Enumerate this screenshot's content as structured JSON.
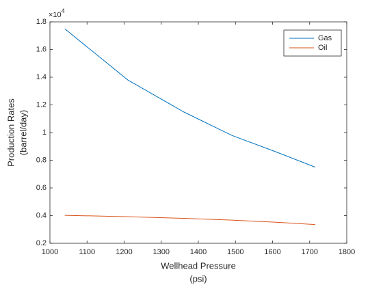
{
  "chart_data": {
    "type": "line",
    "x_label": [
      "Wellhead Pressure",
      "(psi)"
    ],
    "y_label": [
      "Production Rates",
      "(barrel/day)"
    ],
    "y_multiplier": {
      "base": "×10",
      "exponent": "4"
    },
    "x": [
      1040,
      1210,
      1360,
      1490,
      1610,
      1715
    ],
    "series": [
      {
        "name": "Gas",
        "color": "#0072BD",
        "values": [
          1.75,
          1.38,
          1.15,
          0.98,
          0.86,
          0.75
        ]
      },
      {
        "name": "Oil",
        "color": "#D95319",
        "values": [
          0.402,
          0.392,
          0.38,
          0.367,
          0.352,
          0.335
        ]
      }
    ],
    "xlim": [
      1000,
      1800
    ],
    "xticks": [
      1000,
      1100,
      1200,
      1300,
      1400,
      1500,
      1600,
      1700,
      1800
    ],
    "ylim": [
      0.2,
      1.8
    ],
    "yticks": [
      0.2,
      0.4,
      0.6,
      0.8,
      1,
      1.2,
      1.4,
      1.6,
      1.8
    ],
    "grid": false,
    "legend_position": "northeast"
  }
}
